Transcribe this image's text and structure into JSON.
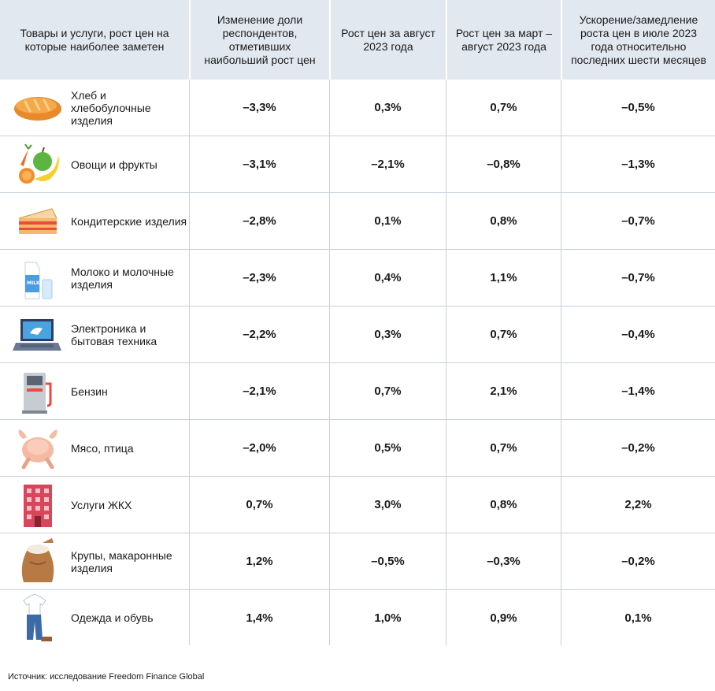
{
  "header": {
    "col0": "Товары и услуги, рост цен на которые наиболее заметен",
    "col1": "Изменение доли респондентов, отметивших наибольший рост цен",
    "col2": "Рост цен за август 2023 года",
    "col3": "Рост цен за март – август 2023 года",
    "col4": "Ускорение/замедление роста цен в июле 2023 года относительно последних шести месяцев"
  },
  "rows": [
    {
      "label": "Хлеб и хлебобулочные изделия",
      "icon": "bread-icon",
      "v1": "–3,3%",
      "v2": "0,3%",
      "v3": "0,7%",
      "v4": "–0,5%"
    },
    {
      "label": "Овощи и фрукты",
      "icon": "fruits-vegetables-icon",
      "v1": "–3,1%",
      "v2": "–2,1%",
      "v3": "–0,8%",
      "v4": "–1,3%"
    },
    {
      "label": "Кондитерские изделия",
      "icon": "cake-icon",
      "v1": "–2,8%",
      "v2": "0,1%",
      "v3": "0,8%",
      "v4": "–0,7%"
    },
    {
      "label": "Молоко и молочные изделия",
      "icon": "milk-icon",
      "v1": "–2,3%",
      "v2": "0,4%",
      "v3": "1,1%",
      "v4": "–0,7%"
    },
    {
      "label": "Электроника и бытовая техника",
      "icon": "laptop-icon",
      "v1": "–2,2%",
      "v2": "0,3%",
      "v3": "0,7%",
      "v4": "–0,4%"
    },
    {
      "label": "Бензин",
      "icon": "fuel-pump-icon",
      "v1": "–2,1%",
      "v2": "0,7%",
      "v3": "2,1%",
      "v4": "–1,4%"
    },
    {
      "label": "Мясо, птица",
      "icon": "chicken-icon",
      "v1": "–2,0%",
      "v2": "0,5%",
      "v3": "0,7%",
      "v4": "–0,2%"
    },
    {
      "label": "Услуги ЖКХ",
      "icon": "building-icon",
      "v1": "0,7%",
      "v2": "3,0%",
      "v3": "0,8%",
      "v4": "2,2%"
    },
    {
      "label": "Крупы, макаронные изделия",
      "icon": "grain-sack-icon",
      "v1": "1,2%",
      "v2": "–0,5%",
      "v3": "–0,3%",
      "v4": "–0,2%"
    },
    {
      "label": "Одежда и обувь",
      "icon": "clothes-icon",
      "v1": "1,4%",
      "v2": "1,0%",
      "v3": "0,9%",
      "v4": "0,1%"
    }
  ],
  "source": "Источник: исследование Freedom Finance Global",
  "chart_data": {
    "type": "table",
    "columns": [
      "Товары и услуги, рост цен на которые наиболее заметен",
      "Изменение доли респондентов, отметивших наибольший рост цен",
      "Рост цен за август 2023 года",
      "Рост цен за март – август 2023 года",
      "Ускорение/замедление роста цен в июле 2023 года относительно последних шести месяцев"
    ],
    "rows": [
      [
        "Хлеб и хлебобулочные изделия",
        "–3,3%",
        "0,3%",
        "0,7%",
        "–0,5%"
      ],
      [
        "Овощи и фрукты",
        "–3,1%",
        "–2,1%",
        "–0,8%",
        "–1,3%"
      ],
      [
        "Кондитерские изделия",
        "–2,8%",
        "0,1%",
        "0,8%",
        "–0,7%"
      ],
      [
        "Молоко и молочные изделия",
        "–2,3%",
        "0,4%",
        "1,1%",
        "–0,7%"
      ],
      [
        "Электроника и бытовая техника",
        "–2,2%",
        "0,3%",
        "0,7%",
        "–0,4%"
      ],
      [
        "Бензин",
        "–2,1%",
        "0,7%",
        "2,1%",
        "–1,4%"
      ],
      [
        "Мясо, птица",
        "–2,0%",
        "0,5%",
        "0,7%",
        "–0,2%"
      ],
      [
        "Услуги ЖКХ",
        "0,7%",
        "3,0%",
        "0,8%",
        "2,2%"
      ],
      [
        "Крупы, макаронные изделия",
        "1,2%",
        "–0,5%",
        "–0,3%",
        "–0,2%"
      ],
      [
        "Одежда и обувь",
        "1,4%",
        "1,0%",
        "0,9%",
        "0,1%"
      ]
    ]
  }
}
